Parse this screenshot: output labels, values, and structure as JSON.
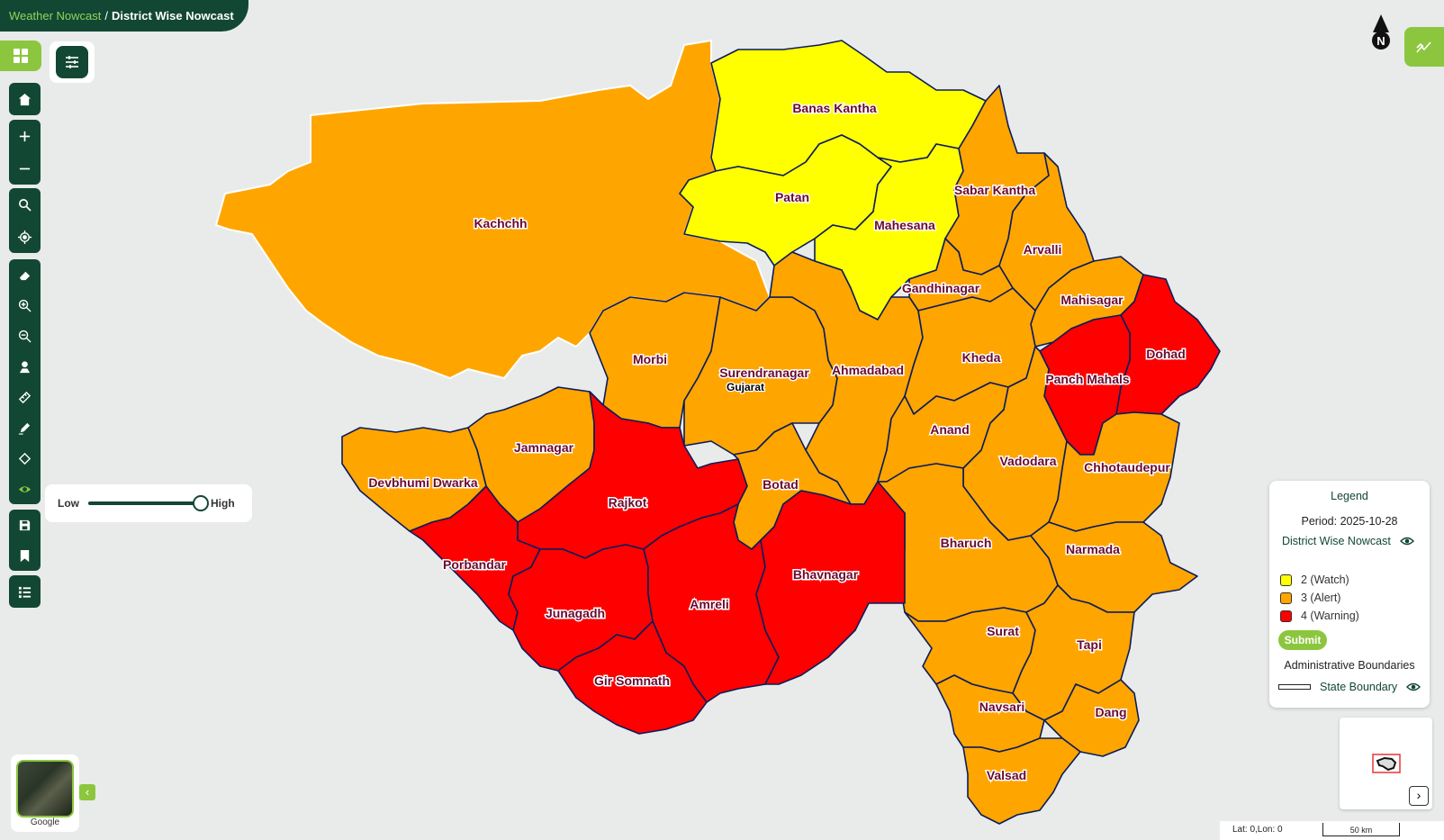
{
  "breadcrumb": {
    "parent": "Weather Nowcast",
    "separator": "/",
    "current": "District Wise Nowcast"
  },
  "slider": {
    "low_label": "Low",
    "high_label": "High",
    "value": 1.0
  },
  "compass": {
    "label": "N"
  },
  "state_label": "Gujarat",
  "colors": {
    "watch": "#ffff00",
    "alert": "#ffa500",
    "warning": "#ff0000",
    "brand": "#124734",
    "accent": "#8cc63f"
  },
  "districts": [
    {
      "name": "Banas Kantha",
      "level": "watch"
    },
    {
      "name": "Patan",
      "level": "watch"
    },
    {
      "name": "Mahesana",
      "level": "watch"
    },
    {
      "name": "Sabar Kantha",
      "level": "alert"
    },
    {
      "name": "Kachchh",
      "level": "alert"
    },
    {
      "name": "Arvalli",
      "level": "alert"
    },
    {
      "name": "Gandhinagar",
      "level": "alert"
    },
    {
      "name": "Mahisagar",
      "level": "alert"
    },
    {
      "name": "Dohad",
      "level": "warning"
    },
    {
      "name": "Morbi",
      "level": "alert"
    },
    {
      "name": "Surendranagar",
      "level": "alert"
    },
    {
      "name": "Ahmadabad",
      "level": "alert"
    },
    {
      "name": "Kheda",
      "level": "alert"
    },
    {
      "name": "Panch Mahals",
      "level": "warning"
    },
    {
      "name": "Anand",
      "level": "alert"
    },
    {
      "name": "Jamnagar",
      "level": "alert"
    },
    {
      "name": "Vadodara",
      "level": "alert"
    },
    {
      "name": "Chhotaudepur",
      "level": "alert"
    },
    {
      "name": "Devbhumi Dwarka",
      "level": "alert"
    },
    {
      "name": "Rajkot",
      "level": "warning"
    },
    {
      "name": "Botad",
      "level": "alert"
    },
    {
      "name": "Bharuch",
      "level": "alert"
    },
    {
      "name": "Narmada",
      "level": "alert"
    },
    {
      "name": "Porbandar",
      "level": "warning"
    },
    {
      "name": "Bhavnagar",
      "level": "warning"
    },
    {
      "name": "Amreli",
      "level": "warning"
    },
    {
      "name": "Junagadh",
      "level": "warning"
    },
    {
      "name": "Surat",
      "level": "alert"
    },
    {
      "name": "Tapi",
      "level": "alert"
    },
    {
      "name": "Gir Somnath",
      "level": "warning"
    },
    {
      "name": "Navsari",
      "level": "alert"
    },
    {
      "name": "Dang",
      "level": "alert"
    },
    {
      "name": "Valsad",
      "level": "alert"
    }
  ],
  "legend": {
    "title": "Legend",
    "period": "Period: 2025-10-28",
    "layer_name": "District Wise Nowcast",
    "items": [
      {
        "label": "2 (Watch)",
        "color": "#ffff00"
      },
      {
        "label": "3 (Alert)",
        "color": "#ffa500"
      },
      {
        "label": "4 (Warning)",
        "color": "#ff0000"
      }
    ],
    "submit_label": "Submit",
    "admin_title": "Administrative Boundaries",
    "state_boundary_label": "State Boundary"
  },
  "status": {
    "latlon": "Lat: 0,Lon: 0",
    "scale": "50 km"
  },
  "basemap": {
    "label": "Google"
  },
  "icons": {
    "grid": "grid-icon",
    "filter": "sliders-icon",
    "home": "home-icon",
    "zoom_in": "plus-icon",
    "zoom_out": "minus-icon",
    "search": "search-icon",
    "locate": "locate-icon",
    "erase": "eraser-icon",
    "zoom_box_in": "zoom-in-icon",
    "zoom_box_out": "zoom-out-icon",
    "marker": "marker-icon",
    "measure": "ruler-icon",
    "draw": "pen-icon",
    "select": "target-icon",
    "visibility": "eye-icon",
    "save": "save-icon",
    "bookmark": "bookmark-icon",
    "list": "list-icon"
  }
}
